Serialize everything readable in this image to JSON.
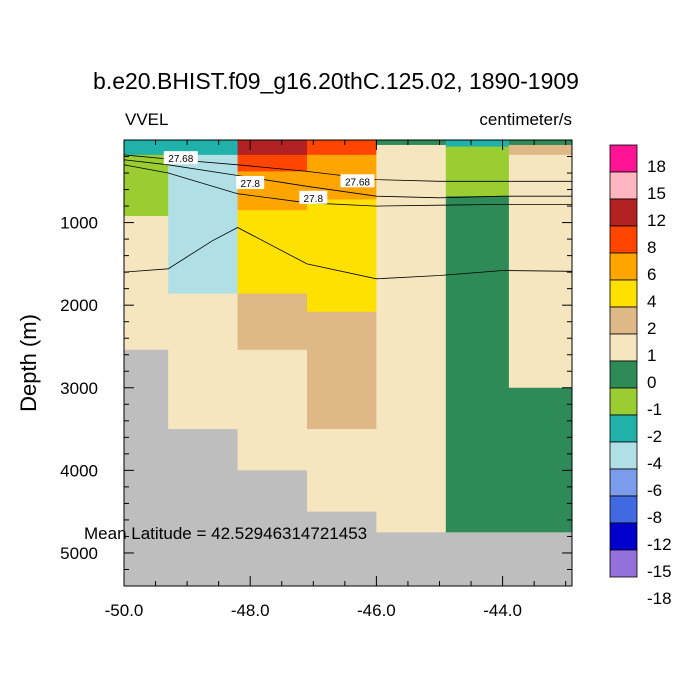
{
  "chart_data": {
    "type": "heatmap",
    "title": "b.e20.BHIST.f09_g16.20thC.125.02, 1890-1909",
    "variable": "VVEL",
    "units": "centimeter/s",
    "xlabel": "",
    "ylabel": "Depth (m)",
    "xlim": [
      -50.0,
      -42.9
    ],
    "ylim": [
      5400,
      0
    ],
    "x_ticks": [
      -50.0,
      -48.0,
      -46.0,
      -44.0
    ],
    "x_tick_labels": [
      "-50.0",
      "-48.0",
      "-46.0",
      "-44.0"
    ],
    "y_ticks": [
      1000,
      2000,
      3000,
      4000,
      5000
    ],
    "y_tick_labels": [
      "1000",
      "2000",
      "3000",
      "4000",
      "5000"
    ],
    "annotation": "Mean Latitude = 42.52946314721453",
    "colorbar": {
      "labels": [
        "18",
        "15",
        "12",
        "8",
        "6",
        "4",
        "2",
        "1",
        "0",
        "-1",
        "-2",
        "-4",
        "-6",
        "-8",
        "-12",
        "-15",
        "-18"
      ],
      "colors": [
        "#ff1493",
        "#ffb6c1",
        "#b22222",
        "#ff4500",
        "#ffa500",
        "#ffe100",
        "#deb887",
        "#f5e6c0",
        "#2e8b57",
        "#9acd32",
        "#20b2aa",
        "#b0e0e6",
        "#7b9ceb",
        "#4169e1",
        "#0000cd",
        "#9370db"
      ]
    },
    "land_color": "#bebebe",
    "columns": [
      {
        "x0": -50.0,
        "x1": -49.3,
        "cells": [
          [
            0,
            180,
            "#20b2aa"
          ],
          [
            180,
            920,
            "#9acd32"
          ],
          [
            920,
            2540,
            "#f5e6c0"
          ],
          [
            2540,
            5400,
            "#bebebe"
          ]
        ]
      },
      {
        "x0": -49.3,
        "x1": -48.2,
        "cells": [
          [
            0,
            180,
            "#20b2aa"
          ],
          [
            180,
            1860,
            "#b0e0e6"
          ],
          [
            1860,
            3500,
            "#f5e6c0"
          ],
          [
            3500,
            5400,
            "#bebebe"
          ]
        ]
      },
      {
        "x0": -48.2,
        "x1": -47.1,
        "cells": [
          [
            0,
            180,
            "#b22222"
          ],
          [
            180,
            380,
            "#ff4500"
          ],
          [
            380,
            850,
            "#ffa500"
          ],
          [
            850,
            1860,
            "#ffe100"
          ],
          [
            1860,
            2540,
            "#deb887"
          ],
          [
            2540,
            4000,
            "#f5e6c0"
          ],
          [
            4000,
            5400,
            "#bebebe"
          ]
        ]
      },
      {
        "x0": -47.1,
        "x1": -46.0,
        "cells": [
          [
            0,
            180,
            "#ff4500"
          ],
          [
            180,
            720,
            "#ffa500"
          ],
          [
            720,
            2080,
            "#ffe100"
          ],
          [
            2080,
            3500,
            "#deb887"
          ],
          [
            3500,
            4500,
            "#f5e6c0"
          ],
          [
            4500,
            5400,
            "#bebebe"
          ]
        ]
      },
      {
        "x0": -46.0,
        "x1": -44.9,
        "cells": [
          [
            0,
            60,
            "#2e8b57"
          ],
          [
            60,
            4750,
            "#f5e6c0"
          ],
          [
            4750,
            5400,
            "#bebebe"
          ]
        ]
      },
      {
        "x0": -44.9,
        "x1": -43.9,
        "cells": [
          [
            0,
            80,
            "#20b2aa"
          ],
          [
            80,
            680,
            "#9acd32"
          ],
          [
            680,
            4750,
            "#2e8b57"
          ],
          [
            4750,
            5400,
            "#bebebe"
          ]
        ]
      },
      {
        "x0": -43.9,
        "x1": -42.9,
        "cells": [
          [
            0,
            60,
            "#2e8b57"
          ],
          [
            60,
            180,
            "#deb887"
          ],
          [
            180,
            3000,
            "#f5e6c0"
          ],
          [
            3000,
            4750,
            "#2e8b57"
          ],
          [
            4750,
            5400,
            "#bebebe"
          ]
        ]
      }
    ],
    "contours": [
      {
        "label": "27.68",
        "points": [
          [
            -50.0,
            180
          ],
          [
            -49.3,
            230
          ],
          [
            -48.2,
            300
          ],
          [
            -47.1,
            380
          ],
          [
            -46.0,
            480
          ],
          [
            -45.0,
            500
          ],
          [
            -44.0,
            500
          ],
          [
            -42.9,
            500
          ]
        ]
      },
      {
        "label": "27.8",
        "points": [
          [
            -50.0,
            240
          ],
          [
            -49.3,
            300
          ],
          [
            -48.2,
            430
          ],
          [
            -47.1,
            560
          ],
          [
            -46.0,
            680
          ],
          [
            -45.0,
            700
          ],
          [
            -44.0,
            680
          ],
          [
            -42.9,
            680
          ]
        ]
      },
      {
        "label": "",
        "points": [
          [
            -50.0,
            300
          ],
          [
            -49.3,
            400
          ],
          [
            -48.2,
            650
          ],
          [
            -47.1,
            760
          ],
          [
            -46.0,
            800
          ],
          [
            -45.0,
            790
          ],
          [
            -44.0,
            780
          ],
          [
            -42.9,
            780
          ]
        ]
      },
      {
        "label": "",
        "points": [
          [
            -50.0,
            1600
          ],
          [
            -49.3,
            1560
          ],
          [
            -48.6,
            1220
          ],
          [
            -48.2,
            1060
          ],
          [
            -47.1,
            1500
          ],
          [
            -46.0,
            1680
          ],
          [
            -45.0,
            1640
          ],
          [
            -44.0,
            1580
          ],
          [
            -42.9,
            1590
          ]
        ]
      }
    ],
    "contour_labels": [
      {
        "text": "27.68",
        "x": -49.1,
        "y": 220
      },
      {
        "text": "27.8",
        "x": -48.0,
        "y": 520
      },
      {
        "text": "27.68",
        "x": -46.3,
        "y": 500
      },
      {
        "text": "27.8",
        "x": -47.0,
        "y": 700
      }
    ]
  }
}
